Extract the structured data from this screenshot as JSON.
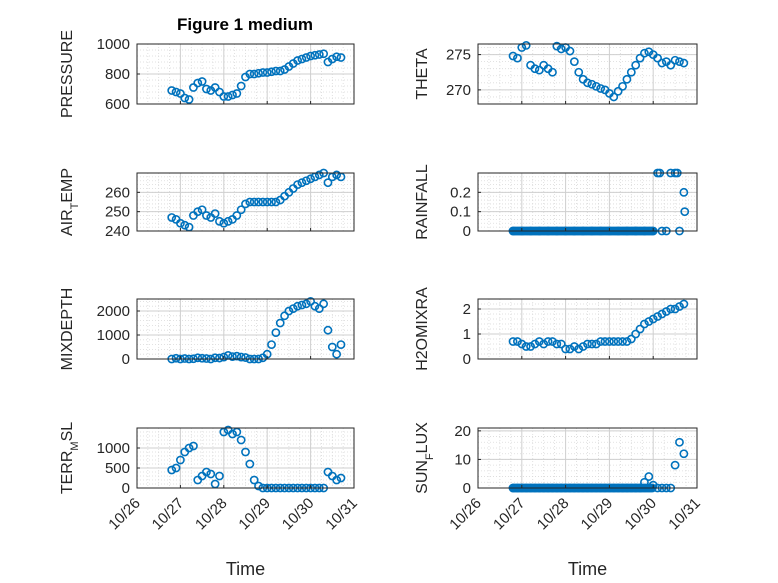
{
  "figure_title": "Figure 1 medium",
  "marker_color": "#0072BD",
  "x_tick_labels": [
    "10/26",
    "10/27",
    "10/28",
    "10/29",
    "10/30",
    "10/31"
  ],
  "chart_data": [
    {
      "type": "scatter",
      "ylabel": "PRESSURE",
      "xlabel": "",
      "xlim": [
        "10/26",
        "10/31"
      ],
      "ylim": [
        600,
        1000
      ],
      "yticks": [
        600,
        800,
        1000
      ],
      "grid": true,
      "minor_grid": true,
      "series": [
        {
          "x": [
            26.8,
            26.9,
            27.0,
            27.1,
            27.2,
            27.3,
            27.4,
            27.5,
            27.6,
            27.7,
            27.8,
            27.9,
            28.0,
            28.1,
            28.2,
            28.3,
            28.4,
            28.5,
            28.6,
            28.7,
            28.8,
            28.9,
            29.0,
            29.1,
            29.2,
            29.3,
            29.4,
            29.5,
            29.6,
            29.7,
            29.8,
            29.9,
            30.0,
            30.1,
            30.2,
            30.3,
            30.4,
            30.5,
            30.6,
            30.7
          ],
          "y": [
            690,
            680,
            670,
            640,
            630,
            710,
            740,
            750,
            700,
            690,
            710,
            680,
            650,
            650,
            660,
            670,
            720,
            780,
            800,
            800,
            805,
            810,
            810,
            815,
            820,
            820,
            830,
            850,
            870,
            890,
            900,
            910,
            920,
            925,
            930,
            935,
            880,
            900,
            915,
            910
          ]
        }
      ]
    },
    {
      "type": "scatter",
      "ylabel": "THETA",
      "xlabel": "",
      "xlim": [
        "10/26",
        "10/31"
      ],
      "ylim": [
        268,
        276.5
      ],
      "yticks": [
        270,
        275
      ],
      "grid": true,
      "minor_grid": true,
      "series": [
        {
          "x": [
            26.8,
            26.9,
            27.0,
            27.1,
            27.2,
            27.3,
            27.4,
            27.5,
            27.6,
            27.7,
            27.8,
            27.9,
            28.0,
            28.1,
            28.2,
            28.3,
            28.4,
            28.5,
            28.6,
            28.7,
            28.8,
            28.9,
            29.0,
            29.1,
            29.2,
            29.3,
            29.4,
            29.5,
            29.6,
            29.7,
            29.8,
            29.9,
            30.0,
            30.1,
            30.2,
            30.3,
            30.4,
            30.5,
            30.6,
            30.7
          ],
          "y": [
            274.8,
            274.5,
            276.0,
            276.3,
            273.5,
            273.0,
            272.8,
            273.5,
            273.0,
            272.5,
            276.2,
            275.8,
            276.0,
            275.5,
            274.0,
            272.5,
            271.5,
            271.0,
            270.8,
            270.5,
            270.2,
            270.0,
            269.5,
            269.0,
            269.8,
            270.5,
            271.5,
            272.5,
            273.5,
            274.5,
            275.2,
            275.4,
            275.0,
            274.5,
            273.8,
            274.0,
            273.5,
            274.2,
            274.0,
            273.8
          ]
        }
      ]
    },
    {
      "type": "scatter",
      "ylabel": "AIR_TEMP",
      "xlabel": "",
      "xlim": [
        "10/26",
        "10/31"
      ],
      "ylim": [
        240,
        270
      ],
      "yticks": [
        240,
        250,
        260
      ],
      "grid": true,
      "minor_grid": true,
      "series": [
        {
          "x": [
            26.8,
            26.9,
            27.0,
            27.1,
            27.2,
            27.3,
            27.4,
            27.5,
            27.6,
            27.7,
            27.8,
            27.9,
            28.0,
            28.1,
            28.2,
            28.3,
            28.4,
            28.5,
            28.6,
            28.7,
            28.8,
            28.9,
            29.0,
            29.1,
            29.2,
            29.3,
            29.4,
            29.5,
            29.6,
            29.7,
            29.8,
            29.9,
            30.0,
            30.1,
            30.2,
            30.3,
            30.4,
            30.5,
            30.6,
            30.7
          ],
          "y": [
            247,
            246,
            244,
            243,
            242,
            248,
            250,
            251,
            248,
            247,
            249,
            245,
            244,
            245,
            246,
            248,
            251,
            254,
            255,
            255,
            255,
            255,
            255,
            255,
            255,
            256,
            258,
            260,
            262,
            264,
            265,
            266,
            267,
            268,
            269,
            270,
            265,
            268,
            269,
            268
          ]
        }
      ]
    },
    {
      "type": "scatter",
      "ylabel": "RAINFALL",
      "xlabel": "",
      "xlim": [
        "10/26",
        "10/31"
      ],
      "ylim": [
        0,
        0.3
      ],
      "yticks": [
        0,
        0.1,
        0.2
      ],
      "grid": true,
      "minor_grid": true,
      "series": [
        {
          "x": [
            26.8,
            27.0,
            27.2,
            27.4,
            27.6,
            27.8,
            28.0,
            28.2,
            28.4,
            28.6,
            28.8,
            29.0,
            29.2,
            29.4,
            29.6,
            29.8,
            30.0,
            30.1,
            30.15,
            30.2,
            30.3,
            30.4,
            30.5,
            30.55,
            30.6,
            30.7,
            30.72
          ],
          "y": [
            0,
            0,
            0,
            0,
            0,
            0,
            0,
            0,
            0,
            0,
            0,
            0,
            0,
            0,
            0,
            0,
            0,
            0.3,
            0.3,
            0,
            0,
            0.3,
            0.3,
            0.3,
            0,
            0.2,
            0.1
          ]
        }
      ]
    },
    {
      "type": "scatter",
      "ylabel": "MIXDEPTH",
      "xlabel": "",
      "xlim": [
        "10/26",
        "10/31"
      ],
      "ylim": [
        0,
        2500
      ],
      "yticks": [
        0,
        1000,
        2000
      ],
      "grid": true,
      "minor_grid": true,
      "series": [
        {
          "x": [
            26.8,
            26.9,
            27.0,
            27.1,
            27.2,
            27.3,
            27.4,
            27.5,
            27.6,
            27.7,
            27.8,
            27.9,
            28.0,
            28.1,
            28.2,
            28.3,
            28.4,
            28.5,
            28.6,
            28.7,
            28.8,
            28.9,
            29.0,
            29.1,
            29.2,
            29.3,
            29.4,
            29.5,
            29.6,
            29.7,
            29.8,
            29.9,
            30.0,
            30.1,
            30.2,
            30.3,
            30.4,
            30.5,
            30.6,
            30.7
          ],
          "y": [
            0,
            30,
            0,
            20,
            0,
            10,
            50,
            30,
            20,
            0,
            50,
            40,
            80,
            150,
            100,
            120,
            80,
            60,
            0,
            0,
            0,
            50,
            200,
            600,
            1100,
            1500,
            1800,
            2000,
            2100,
            2200,
            2250,
            2300,
            2400,
            2200,
            2100,
            2300,
            1200,
            500,
            200,
            600
          ]
        }
      ]
    },
    {
      "type": "scatter",
      "ylabel": "H2OMIXRA",
      "xlabel": "",
      "xlim": [
        "10/26",
        "10/31"
      ],
      "ylim": [
        0,
        2.4
      ],
      "yticks": [
        0,
        1,
        2
      ],
      "grid": true,
      "minor_grid": true,
      "series": [
        {
          "x": [
            26.8,
            26.9,
            27.0,
            27.1,
            27.2,
            27.3,
            27.4,
            27.5,
            27.6,
            27.7,
            27.8,
            27.9,
            28.0,
            28.1,
            28.2,
            28.3,
            28.4,
            28.5,
            28.6,
            28.7,
            28.8,
            28.9,
            29.0,
            29.1,
            29.2,
            29.3,
            29.4,
            29.5,
            29.6,
            29.7,
            29.8,
            29.9,
            30.0,
            30.1,
            30.2,
            30.3,
            30.4,
            30.5,
            30.6,
            30.7
          ],
          "y": [
            0.7,
            0.7,
            0.6,
            0.5,
            0.5,
            0.6,
            0.7,
            0.6,
            0.7,
            0.7,
            0.6,
            0.6,
            0.4,
            0.4,
            0.5,
            0.4,
            0.5,
            0.6,
            0.6,
            0.6,
            0.7,
            0.7,
            0.7,
            0.7,
            0.7,
            0.7,
            0.7,
            0.8,
            1.0,
            1.2,
            1.4,
            1.5,
            1.6,
            1.7,
            1.8,
            1.9,
            2.0,
            2.0,
            2.1,
            2.2
          ]
        }
      ]
    },
    {
      "type": "scatter",
      "ylabel": "TERR_MSL",
      "xlabel": "Time",
      "xlim": [
        "10/26",
        "10/31"
      ],
      "ylim": [
        0,
        1500
      ],
      "yticks": [
        0,
        500,
        1000
      ],
      "grid": true,
      "minor_grid": true,
      "series": [
        {
          "x": [
            26.8,
            26.9,
            27.0,
            27.1,
            27.2,
            27.3,
            27.4,
            27.5,
            27.6,
            27.7,
            27.8,
            27.9,
            28.0,
            28.1,
            28.2,
            28.3,
            28.4,
            28.5,
            28.6,
            28.7,
            28.8,
            28.9,
            29.0,
            29.1,
            29.2,
            29.3,
            29.4,
            29.5,
            29.6,
            29.7,
            29.8,
            29.9,
            30.0,
            30.1,
            30.2,
            30.3,
            30.4,
            30.5,
            30.6,
            30.7
          ],
          "y": [
            450,
            500,
            700,
            900,
            1000,
            1050,
            200,
            300,
            400,
            350,
            100,
            300,
            1400,
            1450,
            1350,
            1400,
            1200,
            900,
            600,
            200,
            50,
            0,
            0,
            0,
            0,
            0,
            0,
            0,
            0,
            0,
            0,
            0,
            0,
            0,
            0,
            0,
            400,
            300,
            200,
            250
          ]
        }
      ]
    },
    {
      "type": "scatter",
      "ylabel": "SUN_FLUX",
      "xlabel": "Time",
      "xlim": [
        "10/26",
        "10/31"
      ],
      "ylim": [
        0,
        21
      ],
      "yticks": [
        0,
        10,
        20
      ],
      "grid": true,
      "minor_grid": true,
      "series": [
        {
          "x": [
            26.8,
            26.9,
            27.0,
            27.1,
            27.2,
            27.3,
            27.4,
            27.5,
            27.6,
            27.7,
            27.8,
            27.9,
            28.0,
            28.1,
            28.2,
            28.3,
            28.4,
            28.5,
            28.6,
            28.7,
            28.8,
            28.9,
            29.0,
            29.1,
            29.2,
            29.3,
            29.4,
            29.5,
            29.6,
            29.7,
            29.8,
            29.9,
            30.0,
            30.1,
            30.2,
            30.3,
            30.4,
            30.5,
            30.6,
            30.7
          ],
          "y": [
            0,
            0,
            0,
            0,
            0,
            0,
            0,
            0,
            0,
            0,
            0,
            0,
            0,
            0,
            0,
            0,
            0,
            0,
            0,
            0,
            0,
            0,
            0,
            0,
            0,
            0,
            0,
            0,
            0,
            0,
            2,
            4,
            1,
            0,
            0,
            0,
            0,
            8,
            16,
            12
          ]
        }
      ]
    }
  ]
}
